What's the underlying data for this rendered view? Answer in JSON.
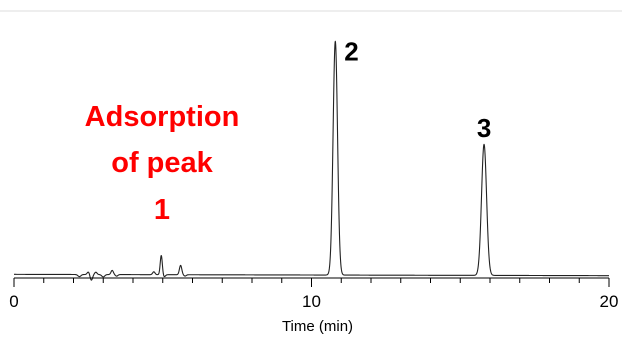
{
  "chart_data": {
    "type": "line",
    "xlabel": "Time (min)",
    "ylabel": "",
    "xlim": [
      0,
      20
    ],
    "x_ticks": [
      0,
      10,
      20
    ],
    "x_tick_labels": [
      "0",
      "10",
      "20"
    ],
    "x_minor_step": 1,
    "ylim": [
      0,
      100
    ],
    "baseline": {
      "start": 1.4,
      "end": 0.9
    },
    "peaks": [
      {
        "label": "2",
        "time": 10.8,
        "height": 89.9,
        "width": 0.075
      },
      {
        "label": "3",
        "time": 15.8,
        "height": 50.4,
        "width": 0.085
      }
    ],
    "noise": [
      {
        "time": 2.2,
        "amp": -0.8,
        "width": 0.05
      },
      {
        "time": 2.5,
        "amp": 1.0,
        "width": 0.04
      },
      {
        "time": 2.6,
        "amp": -2.2,
        "width": 0.04
      },
      {
        "time": 2.75,
        "amp": 0.9,
        "width": 0.04
      },
      {
        "time": 3.0,
        "amp": -0.9,
        "width": 0.05
      },
      {
        "time": 3.3,
        "amp": 1.6,
        "width": 0.04
      },
      {
        "time": 3.45,
        "amp": -0.6,
        "width": 0.04
      },
      {
        "time": 4.7,
        "amp": 1.1,
        "width": 0.04
      },
      {
        "time": 4.95,
        "amp": 7.4,
        "width": 0.035
      },
      {
        "time": 5.05,
        "amp": -0.8,
        "width": 0.04
      },
      {
        "time": 5.6,
        "amp": 3.6,
        "width": 0.04
      },
      {
        "time": 5.75,
        "amp": -0.5,
        "width": 0.04
      }
    ],
    "annotation": {
      "lines": [
        "Adsorption",
        "of peak",
        "1"
      ],
      "color": "#ff0000"
    },
    "peak_label_color": "#000000",
    "line_color": "#222222",
    "grid": false,
    "legend": "none"
  }
}
